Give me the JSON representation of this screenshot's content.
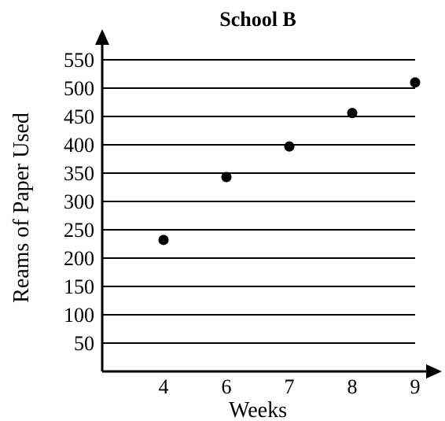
{
  "chart_data": {
    "type": "scatter",
    "title": "School B",
    "xlabel": "Weeks",
    "ylabel": "Reams of Paper Used",
    "x_ticks": [
      4,
      6,
      7,
      8,
      9
    ],
    "y_ticks": [
      50,
      100,
      150,
      200,
      250,
      300,
      350,
      400,
      450,
      500,
      550
    ],
    "ylim": [
      0,
      550
    ],
    "grid": "horizontal",
    "series": [
      {
        "x": [
          4,
          6,
          7,
          8,
          9
        ],
        "y": [
          232,
          343,
          397,
          456,
          510
        ]
      }
    ],
    "colors": {
      "point": "#000000",
      "axis": "#000000"
    }
  }
}
